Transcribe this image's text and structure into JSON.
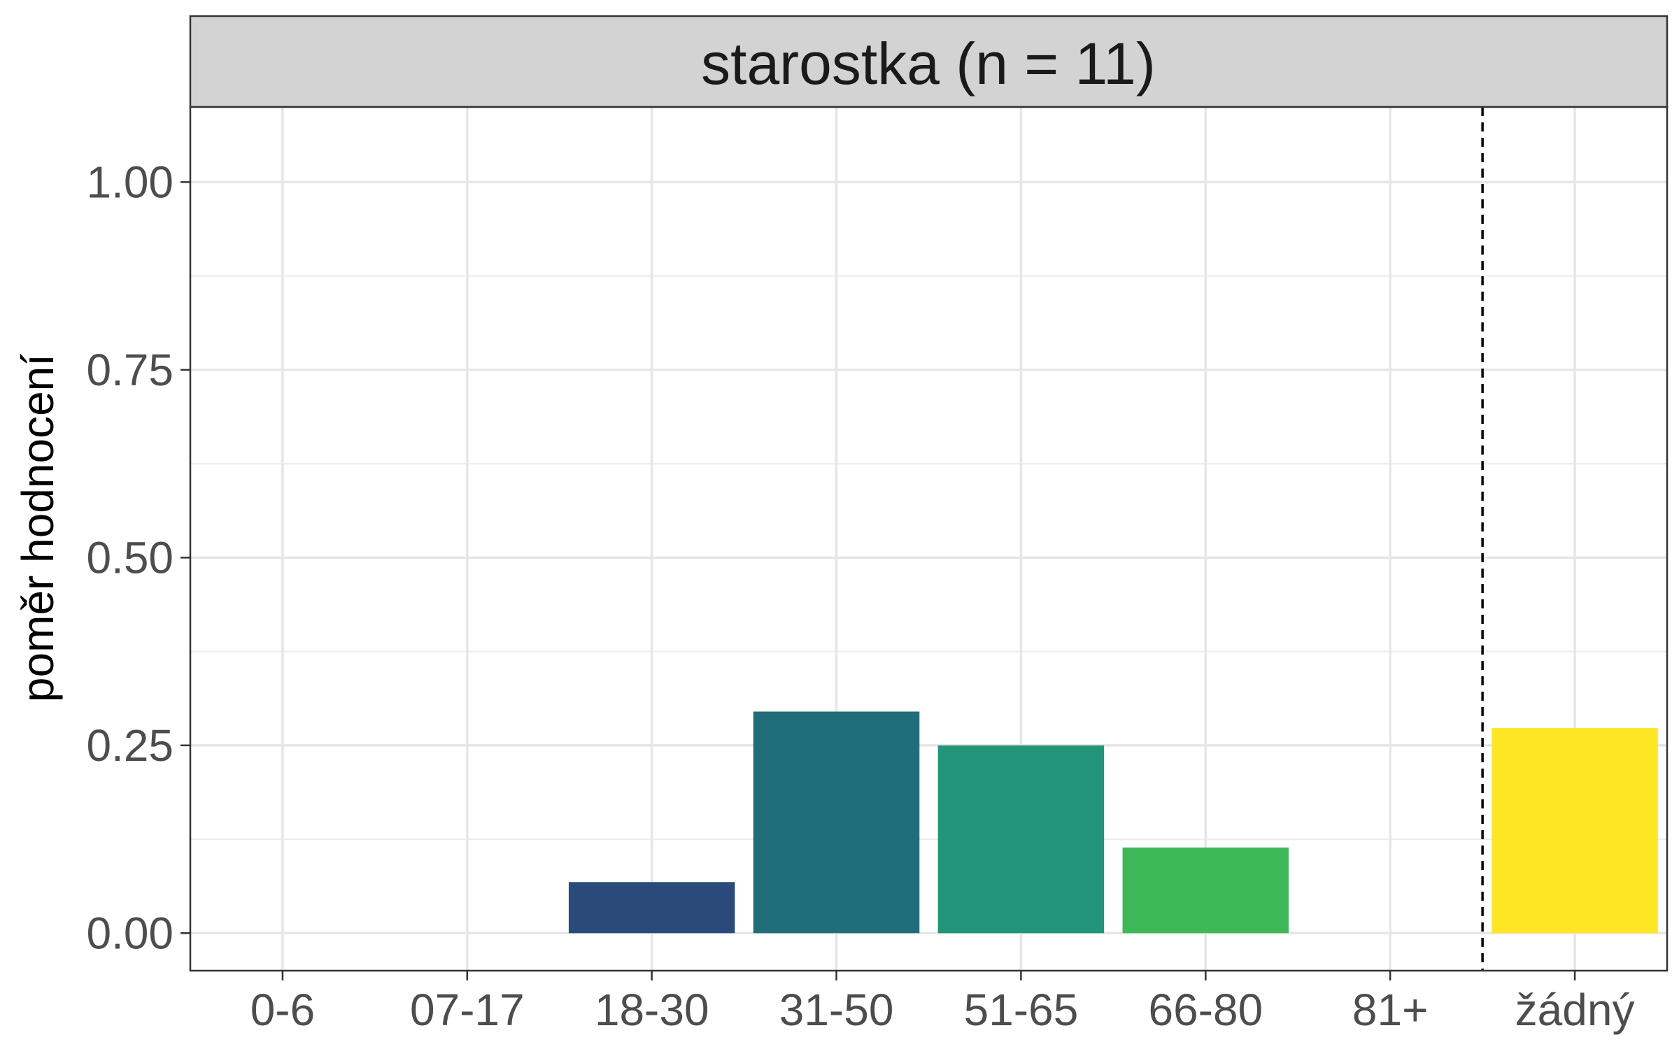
{
  "chart_data": {
    "type": "bar",
    "title": "starostka (n = 11)",
    "xlabel": "",
    "ylabel": "poměr hodnocení",
    "categories": [
      "0-6",
      "07-17",
      "18-30",
      "31-50",
      "51-65",
      "66-80",
      "81+",
      "žádný"
    ],
    "values": [
      0,
      0,
      0.068,
      0.295,
      0.25,
      0.114,
      0,
      0.273
    ],
    "colors": [
      "#440154",
      "#46327e",
      "#2a4a7c",
      "#206d7a",
      "#21947a",
      "#3fb85a",
      "#93d741",
      "#fde725"
    ],
    "ylim": [
      -0.05,
      1.1
    ],
    "yticks": [
      "0.00",
      "0.25",
      "0.50",
      "0.75",
      "1.00"
    ],
    "ytick_values": [
      0,
      0.25,
      0.5,
      0.75,
      1.0
    ],
    "grid": true,
    "reference_line": {
      "between_categories": [
        "81+",
        "žádný"
      ],
      "style": "dashed"
    }
  }
}
